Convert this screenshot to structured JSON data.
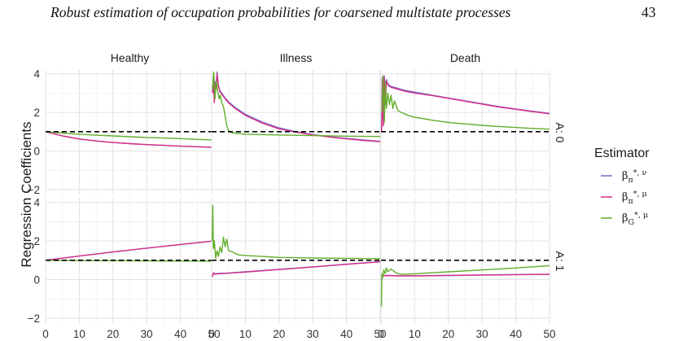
{
  "header": {
    "title": "Robust estimation of occupation probabilities for coarsened multistate processes",
    "page_number": "43"
  },
  "chart_data": {
    "type": "line",
    "facet_columns": [
      "Healthy",
      "Illness",
      "Death"
    ],
    "facet_rows": [
      "A: 0",
      "A: 1"
    ],
    "ylabel": "Regression Coefficients",
    "xlabel": "",
    "xlim": [
      0,
      50
    ],
    "ylim": [
      -2.3,
      4.2
    ],
    "x_ticks": [
      0,
      10,
      20,
      30,
      40,
      50
    ],
    "y_ticks": [
      -2,
      0,
      2,
      4
    ],
    "reference_line": {
      "y": 1,
      "style": "dashed",
      "color": "#000000"
    },
    "grid": true,
    "legend": {
      "title": "Estimator",
      "position": "right",
      "entries": [
        {
          "base": "β",
          "sub": "π",
          "sup": "*, ν",
          "color": "#7b68c8"
        },
        {
          "base": "β",
          "sub": "π",
          "sup": "*, μ",
          "color": "#d62f88"
        },
        {
          "base": "β",
          "sub": "G",
          "sup": "*, μ",
          "color": "#62ad2a"
        }
      ]
    },
    "series_names": [
      "beta_pi_nu",
      "beta_pi_mu",
      "beta_G_mu"
    ],
    "panels": [
      {
        "row": "A: 0",
        "col": "Healthy",
        "series": [
          {
            "key": "beta_pi_nu",
            "x": [
              0,
              5,
              10,
              15,
              20,
              25,
              30,
              35,
              40,
              45,
              50
            ],
            "y": [
              1.0,
              0.78,
              0.62,
              0.52,
              0.44,
              0.38,
              0.33,
              0.29,
              0.25,
              0.22,
              0.18
            ]
          },
          {
            "key": "beta_pi_mu",
            "x": [
              0,
              5,
              10,
              15,
              20,
              25,
              30,
              35,
              40,
              45,
              50
            ],
            "y": [
              1.0,
              0.78,
              0.62,
              0.52,
              0.44,
              0.38,
              0.33,
              0.29,
              0.25,
              0.22,
              0.18
            ]
          },
          {
            "key": "beta_G_mu",
            "x": [
              0,
              5,
              10,
              15,
              20,
              25,
              30,
              35,
              40,
              45,
              50
            ],
            "y": [
              1.0,
              0.93,
              0.87,
              0.82,
              0.78,
              0.74,
              0.7,
              0.67,
              0.64,
              0.6,
              0.57
            ]
          }
        ]
      },
      {
        "row": "A: 0",
        "col": "Illness",
        "series": [
          {
            "key": "beta_pi_nu",
            "x": [
              0.3,
              0.5,
              0.8,
              1.0,
              1.3,
              1.6,
              2,
              2.5,
              3,
              4,
              5,
              7,
              10,
              15,
              20,
              25,
              30,
              35,
              40,
              45,
              50
            ],
            "y": [
              3.0,
              3.9,
              2.6,
              3.6,
              3.3,
              4.1,
              3.4,
              3.1,
              3.0,
              2.75,
              2.55,
              2.25,
              1.9,
              1.5,
              1.2,
              1.0,
              0.85,
              0.74,
              0.65,
              0.57,
              0.5
            ]
          },
          {
            "key": "beta_pi_mu",
            "x": [
              0.3,
              0.5,
              0.8,
              1.0,
              1.3,
              1.6,
              2,
              2.5,
              3,
              4,
              5,
              7,
              10,
              15,
              20,
              25,
              30,
              35,
              40,
              45,
              50
            ],
            "y": [
              3.0,
              3.7,
              2.5,
              3.5,
              3.2,
              4.0,
              3.35,
              3.05,
              2.95,
              2.7,
              2.5,
              2.2,
              1.85,
              1.45,
              1.15,
              0.98,
              0.83,
              0.72,
              0.63,
              0.55,
              0.48
            ]
          },
          {
            "key": "beta_G_mu",
            "x": [
              0.3,
              0.6,
              1.0,
              1.4,
              1.8,
              2.2,
              2.6,
              3,
              3.5,
              4,
              4.5,
              5,
              6,
              8,
              10,
              15,
              20,
              30,
              40,
              50
            ],
            "y": [
              3.2,
              4.1,
              2.7,
              3.6,
              3.1,
              2.7,
              2.9,
              2.5,
              2.3,
              1.8,
              1.3,
              1.05,
              0.95,
              0.9,
              0.87,
              0.85,
              0.83,
              0.8,
              0.77,
              0.75
            ]
          }
        ]
      },
      {
        "row": "A: 0",
        "col": "Death",
        "series": [
          {
            "key": "beta_pi_nu",
            "x": [
              0.2,
              0.4,
              0.7,
              1.0,
              1.3,
              1.6,
              2,
              2.5,
              3,
              4,
              5,
              7,
              10,
              15,
              20,
              25,
              30,
              35,
              40,
              45,
              50
            ],
            "y": [
              1.0,
              3.8,
              1.4,
              3.9,
              2.5,
              3.7,
              3.5,
              3.4,
              3.35,
              3.3,
              3.25,
              3.15,
              3.05,
              2.9,
              2.75,
              2.6,
              2.45,
              2.3,
              2.18,
              2.06,
              1.95
            ]
          },
          {
            "key": "beta_pi_mu",
            "x": [
              0.2,
              0.4,
              0.7,
              1.0,
              1.3,
              1.6,
              2,
              2.5,
              3,
              4,
              5,
              7,
              10,
              15,
              20,
              25,
              30,
              35,
              40,
              45,
              50
            ],
            "y": [
              1.0,
              3.7,
              1.3,
              3.8,
              2.4,
              3.6,
              3.45,
              3.35,
              3.3,
              3.25,
              3.2,
              3.1,
              3.0,
              2.88,
              2.73,
              2.58,
              2.43,
              2.28,
              2.16,
              2.04,
              1.93
            ]
          },
          {
            "key": "beta_G_mu",
            "x": [
              0.3,
              0.6,
              1.0,
              1.3,
              1.6,
              2,
              2.5,
              3,
              3.5,
              4,
              5,
              6,
              8,
              10,
              15,
              20,
              25,
              30,
              35,
              40,
              45,
              50
            ],
            "y": [
              2.0,
              3.9,
              1.5,
              3.6,
              2.2,
              3.0,
              2.4,
              2.9,
              2.2,
              2.6,
              2.1,
              2.0,
              1.85,
              1.75,
              1.6,
              1.48,
              1.4,
              1.33,
              1.27,
              1.22,
              1.17,
              1.13
            ]
          }
        ]
      },
      {
        "row": "A: 1",
        "col": "Healthy",
        "series": [
          {
            "key": "beta_pi_nu",
            "x": [
              0,
              10,
              20,
              30,
              40,
              50
            ],
            "y": [
              1.0,
              1.22,
              1.43,
              1.63,
              1.82,
              2.0
            ]
          },
          {
            "key": "beta_pi_mu",
            "x": [
              0,
              10,
              20,
              30,
              40,
              50
            ],
            "y": [
              1.0,
              1.22,
              1.43,
              1.63,
              1.82,
              2.0
            ]
          },
          {
            "key": "beta_G_mu",
            "x": [
              0,
              10,
              20,
              30,
              40,
              50
            ],
            "y": [
              1.0,
              0.99,
              0.98,
              0.97,
              0.96,
              0.95
            ]
          }
        ]
      },
      {
        "row": "A: 1",
        "col": "Illness",
        "series": [
          {
            "key": "beta_pi_nu",
            "x": [
              0.2,
              0.5,
              1,
              2,
              5,
              10,
              20,
              30,
              40,
              50
            ],
            "y": [
              0.15,
              0.35,
              0.3,
              0.32,
              0.34,
              0.4,
              0.53,
              0.66,
              0.8,
              0.93
            ]
          },
          {
            "key": "beta_pi_mu",
            "x": [
              0.2,
              0.5,
              1,
              2,
              5,
              10,
              20,
              30,
              40,
              50
            ],
            "y": [
              0.15,
              0.33,
              0.28,
              0.3,
              0.33,
              0.39,
              0.52,
              0.65,
              0.79,
              0.92
            ]
          },
          {
            "key": "beta_G_mu",
            "x": [
              0.2,
              0.35,
              0.5,
              0.8,
              1.2,
              1.6,
              2,
              2.5,
              3,
              3.5,
              4,
              4.5,
              5,
              6,
              7,
              8,
              10,
              15,
              20,
              30,
              40,
              50
            ],
            "y": [
              2.0,
              3.85,
              1.6,
              2.0,
              1.1,
              1.5,
              1.2,
              1.7,
              1.4,
              2.2,
              1.7,
              2.1,
              1.5,
              1.45,
              1.35,
              1.28,
              1.25,
              1.2,
              1.15,
              1.12,
              1.1,
              1.08
            ]
          }
        ]
      },
      {
        "row": "A: 1",
        "col": "Death",
        "series": [
          {
            "key": "beta_pi_nu",
            "x": [
              0.2,
              0.5,
              1,
              2,
              5,
              10,
              20,
              30,
              40,
              50
            ],
            "y": [
              0.0,
              0.25,
              0.2,
              0.22,
              0.2,
              0.2,
              0.22,
              0.24,
              0.26,
              0.28
            ]
          },
          {
            "key": "beta_pi_mu",
            "x": [
              0.2,
              0.5,
              1,
              2,
              5,
              10,
              20,
              30,
              40,
              50
            ],
            "y": [
              0.0,
              0.23,
              0.19,
              0.21,
              0.19,
              0.19,
              0.21,
              0.23,
              0.25,
              0.27
            ]
          },
          {
            "key": "beta_G_mu",
            "x": [
              0.15,
              0.3,
              0.5,
              0.8,
              1.2,
              1.6,
              2,
              3,
              4,
              5,
              7,
              10,
              15,
              20,
              30,
              40,
              50
            ],
            "y": [
              -1.4,
              0.3,
              0.1,
              0.5,
              0.3,
              0.6,
              0.4,
              0.55,
              0.4,
              0.3,
              0.28,
              0.3,
              0.35,
              0.4,
              0.5,
              0.6,
              0.72
            ]
          }
        ]
      }
    ]
  }
}
